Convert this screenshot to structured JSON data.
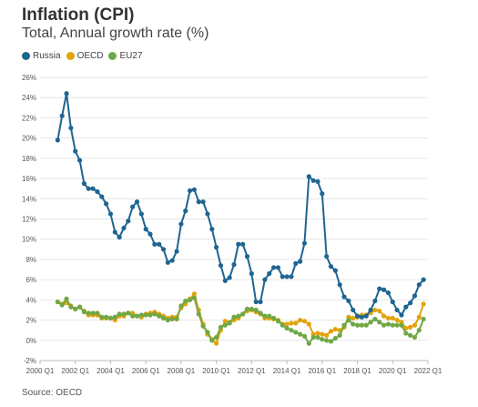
{
  "title": "Inflation (CPI)",
  "subtitle": "Total, Annual growth rate (%)",
  "source": "Source: OECD",
  "chart_data": {
    "type": "line",
    "ylim": [
      -2,
      26
    ],
    "y_ticks": [
      -2,
      0,
      2,
      4,
      6,
      8,
      10,
      12,
      14,
      16,
      18,
      20,
      22,
      24,
      26
    ],
    "y_tick_labels": [
      "-2%",
      "0%",
      "2%",
      "4%",
      "6%",
      "8%",
      "10%",
      "12%",
      "14%",
      "16%",
      "18%",
      "20%",
      "22%",
      "24%",
      "26%"
    ],
    "x_ticks": [
      2000,
      2002,
      2004,
      2006,
      2008,
      2010,
      2012,
      2014,
      2016,
      2018,
      2020,
      2022
    ],
    "x_tick_labels": [
      "2000 Q1",
      "2002 Q1",
      "2004 Q1",
      "2006 Q1",
      "2008 Q1",
      "2010 Q1",
      "2012 Q1",
      "2014 Q1",
      "2016 Q1",
      "2018 Q1",
      "2020 Q1",
      "2022 Q1"
    ],
    "x_start": 2001.0,
    "x_step": 0.25,
    "series": [
      {
        "name": "Russia",
        "color": "#1f6591",
        "values": [
          19.8,
          22.2,
          24.4,
          21.0,
          18.7,
          17.8,
          15.5,
          15.0,
          15.0,
          14.7,
          14.2,
          13.5,
          12.5,
          10.7,
          10.2,
          11.1,
          11.8,
          13.2,
          13.7,
          12.5,
          11.0,
          10.5,
          9.5,
          9.5,
          9.0,
          7.7,
          7.9,
          8.8,
          11.5,
          12.8,
          14.8,
          14.9,
          13.7,
          13.7,
          12.5,
          11.0,
          9.2,
          7.4,
          5.9,
          6.2,
          7.5,
          9.5,
          9.5,
          8.3,
          6.6,
          3.8,
          3.8,
          6.0,
          6.6,
          7.2,
          7.2,
          6.3,
          6.3,
          6.3,
          7.6,
          7.8,
          9.6,
          16.2,
          15.8,
          15.7,
          14.5,
          8.3,
          7.3,
          6.9,
          5.5,
          4.3,
          3.9,
          3.0,
          2.4,
          2.3,
          2.4,
          3.0,
          3.9,
          5.1,
          5.0,
          4.7,
          3.8,
          3.0,
          2.5,
          3.3,
          3.7,
          4.4,
          5.5,
          6.0
        ]
      },
      {
        "name": "OECD",
        "color": "#e3a30b",
        "values": [
          3.8,
          3.6,
          3.7,
          3.4,
          3.1,
          3.3,
          2.9,
          2.5,
          2.5,
          2.5,
          2.2,
          2.2,
          2.2,
          2.0,
          2.4,
          2.4,
          2.7,
          2.7,
          2.4,
          2.3,
          2.6,
          2.7,
          2.8,
          2.6,
          2.4,
          2.2,
          2.3,
          2.3,
          3.2,
          3.6,
          4.1,
          4.6,
          3.0,
          1.6,
          0.6,
          0.1,
          -0.3,
          1.0,
          1.9,
          1.8,
          2.0,
          2.2,
          2.6,
          2.9,
          3.0,
          2.8,
          2.6,
          2.2,
          2.2,
          2.1,
          2.0,
          1.6,
          1.6,
          1.7,
          1.7,
          2.0,
          1.9,
          1.6,
          0.6,
          0.7,
          0.6,
          0.5,
          0.9,
          1.1,
          1.0,
          1.3,
          2.3,
          2.2,
          2.3,
          2.5,
          2.5,
          2.7,
          3.0,
          2.9,
          2.4,
          2.2,
          2.2,
          2.0,
          1.8,
          1.2,
          1.3,
          1.5,
          2.3,
          3.6
        ]
      },
      {
        "name": "EU27",
        "color": "#6fa845",
        "values": [
          3.8,
          3.5,
          4.1,
          3.3,
          3.1,
          3.3,
          2.8,
          2.7,
          2.7,
          2.7,
          2.3,
          2.3,
          2.2,
          2.3,
          2.6,
          2.6,
          2.7,
          2.4,
          2.4,
          2.5,
          2.5,
          2.5,
          2.6,
          2.4,
          2.2,
          2.0,
          2.1,
          2.1,
          3.4,
          3.9,
          4.0,
          4.2,
          2.6,
          1.4,
          0.8,
          0.0,
          0.3,
          1.3,
          1.5,
          1.7,
          2.3,
          2.4,
          2.6,
          3.1,
          3.1,
          3.0,
          2.7,
          2.4,
          2.4,
          2.2,
          1.9,
          1.5,
          1.2,
          1.0,
          0.8,
          0.6,
          0.4,
          -0.3,
          0.3,
          0.3,
          0.1,
          0.0,
          -0.1,
          0.2,
          0.5,
          1.5,
          2.0,
          1.6,
          1.5,
          1.5,
          1.5,
          1.8,
          2.1,
          1.8,
          1.5,
          1.6,
          1.5,
          1.5,
          1.5,
          0.7,
          0.5,
          0.3,
          1.0,
          2.1
        ]
      }
    ]
  }
}
